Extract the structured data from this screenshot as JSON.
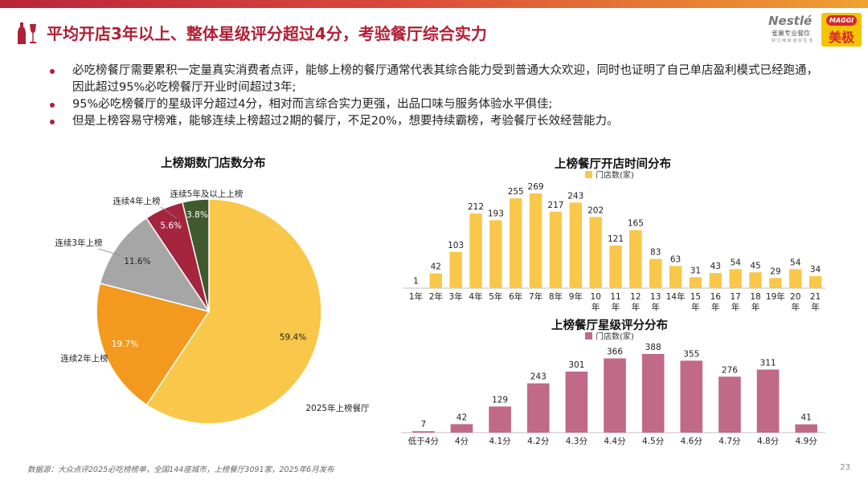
{
  "title": "平均开店3年以上、整体星级评分超过4分，考验餐厅综合实力",
  "logos": {
    "nestle": "Nestlé",
    "nestle_sub": "雀巢专业餐饮",
    "nestle_tag": "好 口 味 启 迪 好 生 活",
    "maggi": "MAGGI",
    "maggi_cn": "美极"
  },
  "bullets": [
    "必吃榜餐厅需要累积一定量真实消费者点评，能够上榜的餐厅通常代表其综合能力受到普通大众欢迎，同时也证明了自己单店盈利模式已经跑通，因此超过95%必吃榜餐厅开业时间超过3年;",
    "95%必吃榜餐厅的星级评分超过4分，相对而言综合实力更强，出品口味与服务体验水平俱佳;",
    "但是上榜容易守榜难，能够连续上榜超过2期的餐厅，不足20%，想要持续霸榜，考验餐厅长效经营能力。"
  ],
  "chart_data": [
    {
      "type": "pie",
      "title": "上榜期数门店数分布",
      "categories": [
        "2025年上榜餐厅",
        "连续2年上榜",
        "连续3年上榜",
        "连续4年上榜",
        "连续5年及以上上榜"
      ],
      "values": [
        59.4,
        19.7,
        11.6,
        5.6,
        3.8
      ],
      "labels": [
        "59.4%",
        "19.7%",
        "11.6%",
        "5.6%",
        "3.8%"
      ],
      "colors": [
        "#f9c84a",
        "#f39a1e",
        "#a6a6a6",
        "#a5243e",
        "#3f5a2c"
      ]
    },
    {
      "type": "bar",
      "title": "上榜餐厅开店时间分布",
      "legend": "门店数(家)",
      "categories": [
        "1年",
        "2年",
        "3年",
        "4年",
        "5年",
        "6年",
        "7年",
        "8年",
        "9年",
        "10年",
        "11年",
        "12年",
        "13年",
        "14年",
        "15年",
        "16年",
        "17年",
        "18年",
        "19年",
        "20年",
        "21年"
      ],
      "tick_labels": [
        [
          "1年"
        ],
        [
          "2年"
        ],
        [
          "3年"
        ],
        [
          "4年"
        ],
        [
          "5年"
        ],
        [
          "6年"
        ],
        [
          "7年"
        ],
        [
          "8年"
        ],
        [
          "9年"
        ],
        [
          "10",
          "年"
        ],
        [
          "11",
          "年"
        ],
        [
          "12",
          "年"
        ],
        [
          "13",
          "年"
        ],
        [
          "14年"
        ],
        [
          "15",
          "年"
        ],
        [
          "16",
          "年"
        ],
        [
          "17",
          "年"
        ],
        [
          "18",
          "年"
        ],
        [
          "19年"
        ],
        [
          "20",
          "年"
        ],
        [
          "21",
          "年"
        ]
      ],
      "values": [
        1,
        42,
        103,
        212,
        193,
        255,
        269,
        217,
        243,
        202,
        121,
        165,
        83,
        63,
        31,
        43,
        54,
        45,
        29,
        54,
        34
      ],
      "color": "#f9c84a"
    },
    {
      "type": "bar",
      "title": "上榜餐厅星级评分分布",
      "legend": "门店数(家)",
      "categories": [
        "低于4分",
        "4分",
        "4.1分",
        "4.2分",
        "4.3分",
        "4.4分",
        "4.5分",
        "4.6分",
        "4.7分",
        "4.8分",
        "4.9分"
      ],
      "values": [
        7,
        42,
        129,
        243,
        301,
        366,
        388,
        355,
        276,
        311,
        41
      ],
      "color": "#c06a88"
    }
  ],
  "footer": "数据源：大众点评2025必吃榜榜单，全国144座城市，上榜餐厅3091家，2025年6月发布",
  "page_number": "23"
}
